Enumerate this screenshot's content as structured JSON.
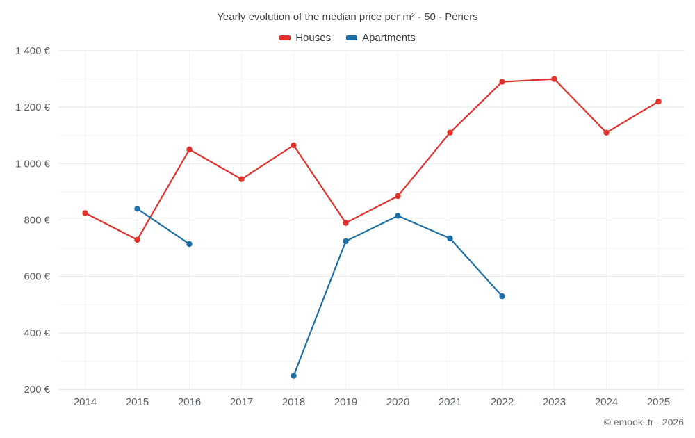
{
  "chart": {
    "footer": "© emooki.fr - 2026"
  },
  "chart_data": {
    "type": "line",
    "title": "Yearly evolution of the median price per m² - 50 - Périers",
    "categories": [
      "2014",
      "2015",
      "2016",
      "2017",
      "2018",
      "2019",
      "2020",
      "2021",
      "2022",
      "2023",
      "2024",
      "2025"
    ],
    "series": [
      {
        "name": "Houses",
        "color": "#e0312a",
        "values": [
          825,
          730,
          1050,
          945,
          1065,
          790,
          885,
          1110,
          1290,
          1300,
          1110,
          1220
        ]
      },
      {
        "name": "Apartments",
        "color": "#1b6fa5",
        "values": [
          null,
          840,
          715,
          null,
          248,
          725,
          815,
          735,
          530,
          null,
          null,
          null
        ]
      }
    ],
    "xlabel": "",
    "ylabel": "",
    "ylim": [
      200,
      1400
    ],
    "y_major_step": 200,
    "y_minor_step": 100,
    "y_tick_labels": [
      "200 €",
      "400 €",
      "600 €",
      "800 €",
      "1 000 €",
      "1 200 €",
      "1 400 €"
    ],
    "grid": true,
    "legend_position": "top"
  }
}
